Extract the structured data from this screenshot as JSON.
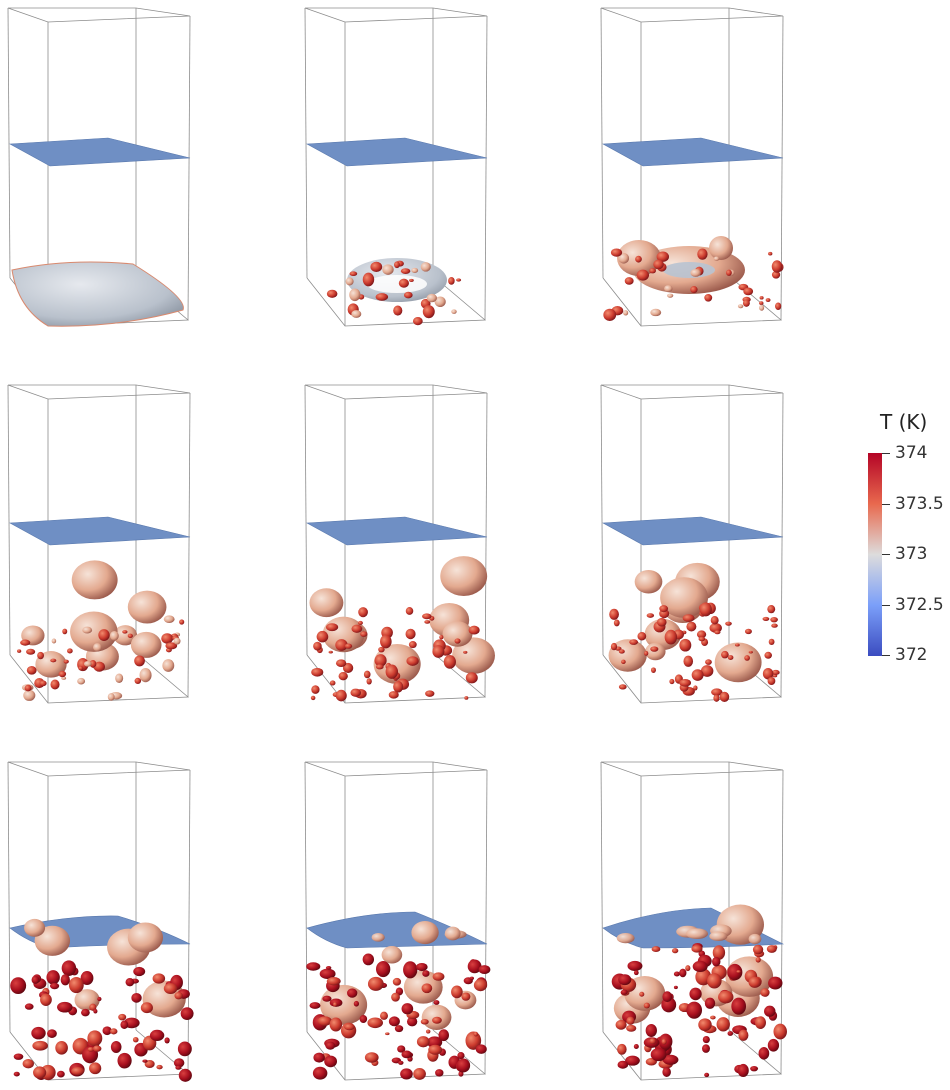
{
  "panels": [
    {
      "row": 1,
      "col": 1,
      "stage": 1
    },
    {
      "row": 1,
      "col": 2,
      "stage": 2
    },
    {
      "row": 1,
      "col": 3,
      "stage": 3
    },
    {
      "row": 2,
      "col": 1,
      "stage": 4
    },
    {
      "row": 2,
      "col": 2,
      "stage": 5
    },
    {
      "row": 2,
      "col": 3,
      "stage": 6
    },
    {
      "row": 3,
      "col": 1,
      "stage": 7
    },
    {
      "row": 3,
      "col": 2,
      "stage": 8
    },
    {
      "row": 3,
      "col": 3,
      "stage": 9
    }
  ],
  "colorbar": {
    "title": "T (K)",
    "ticks": [
      "374",
      "373.5",
      "373",
      "372.5",
      "372"
    ],
    "max": 374,
    "min": 372,
    "colors": [
      "#b40426",
      "#e8694e",
      "#dddcdc",
      "#7b9ff9",
      "#3b4cc0"
    ]
  },
  "colors": {
    "interface": "#6f8fc4",
    "bubble_warm": "#e8b9a4",
    "bubble_hot": "#c93a30",
    "bubble_vhot": "#a8101e",
    "box_line": "#8c8c8c"
  }
}
